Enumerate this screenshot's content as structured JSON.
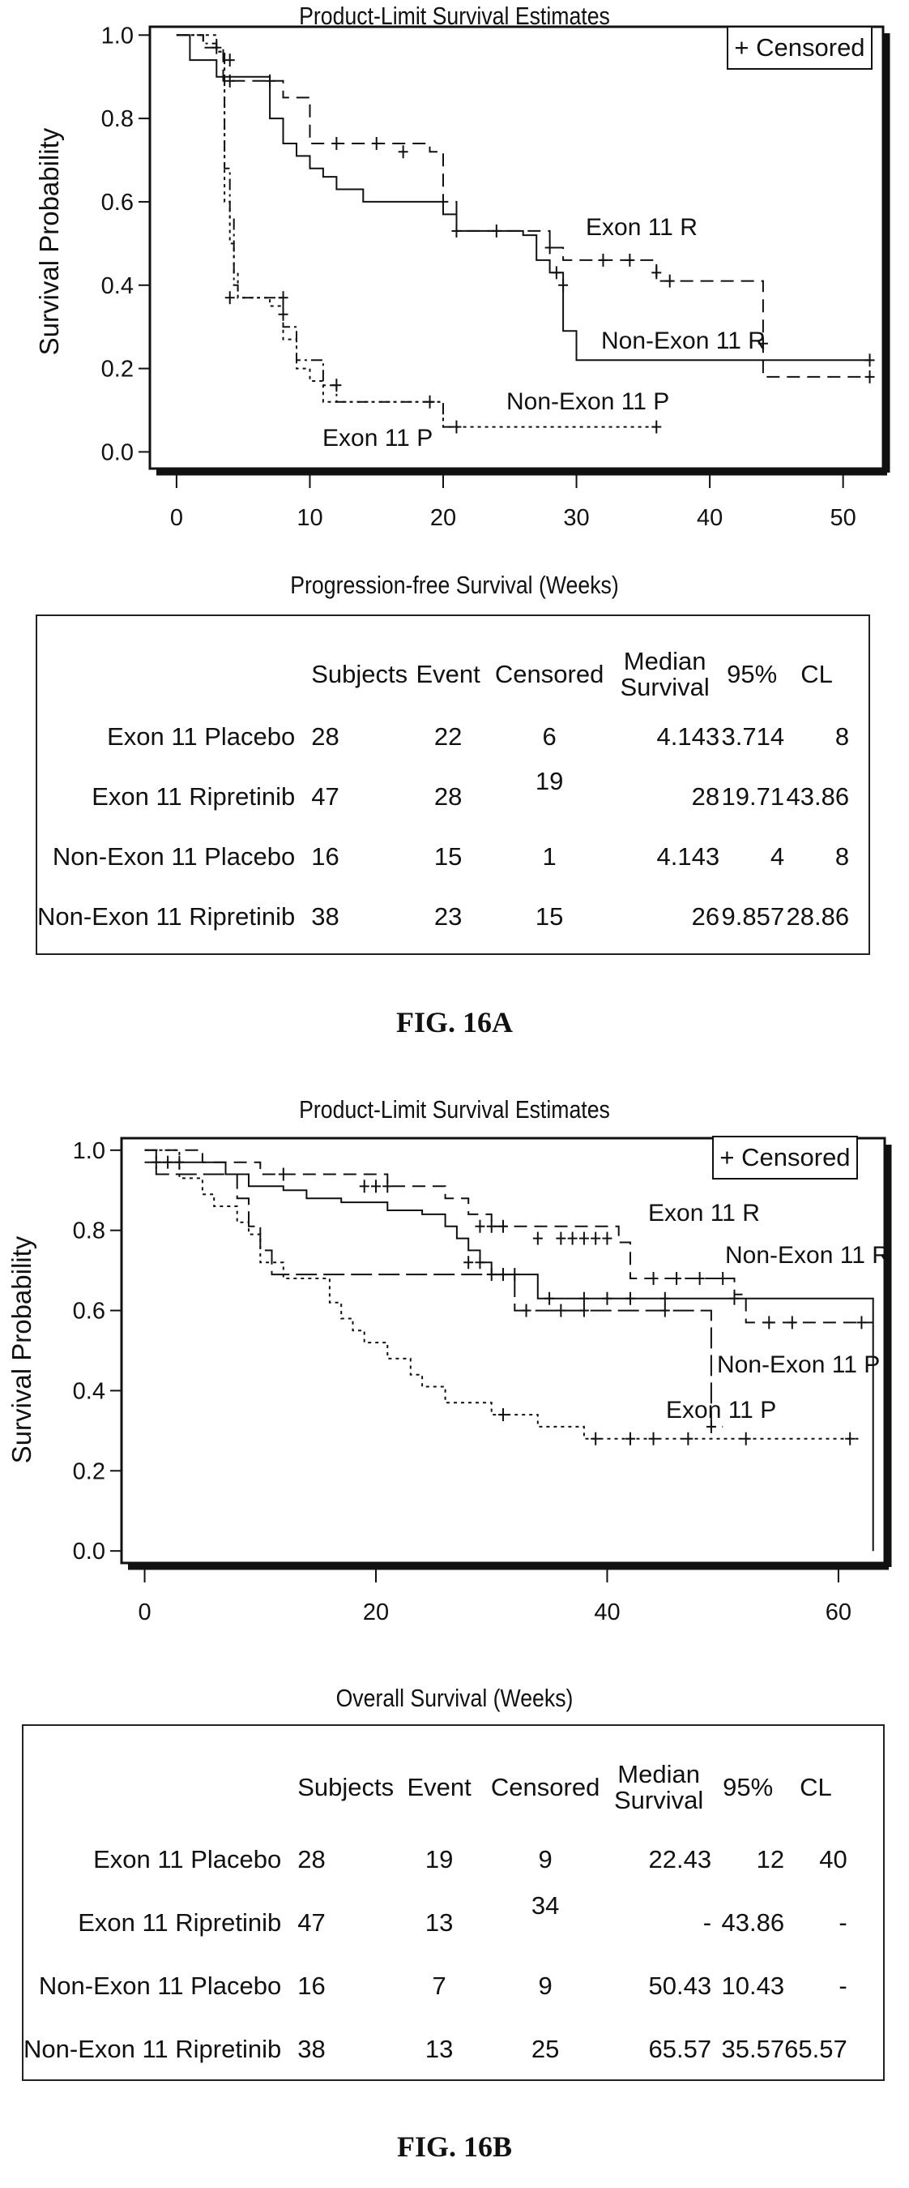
{
  "figures": [
    {
      "chart_title": "Product-Limit Survival Estimates",
      "legend": "+ Censored",
      "ylabel": "Survival Probability",
      "table_title": "Progression-free Survival (Weeks)",
      "table_headers": [
        "Subjects",
        "Event",
        "Censored",
        "Median Survival",
        "95%",
        "CL"
      ],
      "table_rows": [
        {
          "name": "Exon 11 Placebo",
          "cells": [
            "28",
            "22",
            "6",
            "4.143",
            "3.714",
            "8"
          ]
        },
        {
          "name": "Exon 11 Ripretinib",
          "cells": [
            "47",
            "28",
            "19",
            "28",
            "19.71",
            "43.86"
          ]
        },
        {
          "name": "Non-Exon 11 Placebo",
          "cells": [
            "16",
            "15",
            "1",
            "4.143",
            "4",
            "8"
          ]
        },
        {
          "name": "Non-Exon 11 Ripretinib",
          "cells": [
            "38",
            "23",
            "15",
            "26",
            "9.857",
            "28.86"
          ]
        }
      ],
      "figure_label": "FIG. 16A"
    },
    {
      "chart_title": "Product-Limit Survival Estimates",
      "legend": "+ Censored",
      "ylabel": "Survival Probability",
      "table_title": "Overall Survival (Weeks)",
      "table_headers": [
        "Subjects",
        "Event",
        "Censored",
        "Median Survival",
        "95%",
        "CL"
      ],
      "table_rows": [
        {
          "name": "Exon 11 Placebo",
          "cells": [
            "28",
            "19",
            "9",
            "22.43",
            "12",
            "40"
          ]
        },
        {
          "name": "Exon 11 Ripretinib",
          "cells": [
            "47",
            "13",
            "34",
            "-",
            "43.86",
            "-"
          ]
        },
        {
          "name": "Non-Exon 11 Placebo",
          "cells": [
            "16",
            "7",
            "9",
            "50.43",
            "10.43",
            "-"
          ]
        },
        {
          "name": "Non-Exon 11 Ripretinib",
          "cells": [
            "38",
            "13",
            "25",
            "65.57",
            "35.57",
            "65.57"
          ]
        }
      ],
      "figure_label": "FIG. 16B"
    }
  ],
  "chart_data": [
    {
      "type": "line",
      "title": "Product-Limit Survival Estimates",
      "xlabel": "",
      "ylabel": "Survival Probability",
      "xlim": [
        -2,
        53
      ],
      "ylim": [
        -0.04,
        1.02
      ],
      "xticks": [
        0,
        10,
        20,
        30,
        40,
        50
      ],
      "yticks": [
        0.0,
        0.2,
        0.4,
        0.6,
        0.8,
        1.0
      ],
      "legend": "+ Censored",
      "legend_position": "top-right",
      "series": [
        {
          "name": "Exon 11 R",
          "style": "dashed",
          "steps": [
            [
              0,
              1.0
            ],
            [
              2,
              0.97
            ],
            [
              3.5,
              0.89
            ],
            [
              8,
              0.85
            ],
            [
              10,
              0.74
            ],
            [
              19,
              0.72
            ],
            [
              20,
              0.6
            ],
            [
              21,
              0.53
            ],
            [
              28,
              0.49
            ],
            [
              29,
              0.46
            ],
            [
              36,
              0.41
            ],
            [
              44,
              0.18
            ],
            [
              52,
              0.18
            ]
          ],
          "censored": [
            [
              4,
              0.89
            ],
            [
              7,
              0.89
            ],
            [
              12,
              0.74
            ],
            [
              15,
              0.74
            ],
            [
              17,
              0.72
            ],
            [
              24,
              0.53
            ],
            [
              32,
              0.46
            ],
            [
              34,
              0.46
            ],
            [
              36,
              0.43
            ],
            [
              37,
              0.41
            ],
            [
              44,
              0.26
            ],
            [
              52,
              0.18
            ]
          ]
        },
        {
          "name": "Non-Exon 11 R",
          "style": "solid",
          "steps": [
            [
              0,
              1.0
            ],
            [
              1,
              0.94
            ],
            [
              3,
              0.9
            ],
            [
              7,
              0.8
            ],
            [
              8,
              0.74
            ],
            [
              9,
              0.71
            ],
            [
              10,
              0.68
            ],
            [
              11,
              0.66
            ],
            [
              12,
              0.63
            ],
            [
              14,
              0.6
            ],
            [
              20,
              0.57
            ],
            [
              21,
              0.53
            ],
            [
              26,
              0.52
            ],
            [
              27,
              0.46
            ],
            [
              28,
              0.43
            ],
            [
              29,
              0.29
            ],
            [
              30,
              0.22
            ],
            [
              52,
              0.22
            ]
          ],
          "censored": [
            [
              3,
              0.97
            ],
            [
              4,
              0.94
            ],
            [
              21,
              0.53
            ],
            [
              28,
              0.49
            ],
            [
              28.5,
              0.43
            ],
            [
              29,
              0.4
            ],
            [
              52,
              0.22
            ]
          ]
        },
        {
          "name": "Exon 11 P",
          "style": "dash-dot",
          "steps": [
            [
              0,
              1.0
            ],
            [
              2,
              0.98
            ],
            [
              3,
              0.96
            ],
            [
              3.6,
              0.68
            ],
            [
              4,
              0.56
            ],
            [
              4.3,
              0.4
            ],
            [
              4.6,
              0.37
            ],
            [
              8,
              0.3
            ],
            [
              9,
              0.22
            ],
            [
              11,
              0.16
            ],
            [
              12,
              0.12
            ],
            [
              20,
              0.06
            ],
            [
              21,
              0.06
            ]
          ],
          "censored": [
            [
              4,
              0.37
            ],
            [
              8,
              0.33
            ],
            [
              12,
              0.16
            ],
            [
              21,
              0.06
            ]
          ]
        },
        {
          "name": "Non-Exon 11 P",
          "style": "dotted",
          "steps": [
            [
              0,
              1.0
            ],
            [
              3,
              0.96
            ],
            [
              3.6,
              0.6
            ],
            [
              4,
              0.5
            ],
            [
              4.3,
              0.43
            ],
            [
              4.6,
              0.37
            ],
            [
              7,
              0.35
            ],
            [
              8,
              0.27
            ],
            [
              9,
              0.2
            ],
            [
              10,
              0.17
            ],
            [
              11,
              0.12
            ],
            [
              19,
              0.12
            ],
            [
              20,
              0.06
            ],
            [
              36,
              0.06
            ]
          ],
          "censored": [
            [
              8,
              0.37
            ],
            [
              19,
              0.12
            ],
            [
              36,
              0.06
            ]
          ]
        }
      ]
    },
    {
      "type": "line",
      "title": "Product-Limit Survival Estimates",
      "xlabel": "",
      "ylabel": "Survival Probability",
      "xlim": [
        -2,
        64
      ],
      "ylim": [
        -0.03,
        1.03
      ],
      "xticks": [
        0,
        20,
        40,
        60
      ],
      "yticks": [
        0.0,
        0.2,
        0.4,
        0.6,
        0.8,
        1.0
      ],
      "legend": "+ Censored",
      "legend_position": "top-right",
      "series": [
        {
          "name": "Exon 11 R",
          "style": "dashed",
          "steps": [
            [
              0,
              1.0
            ],
            [
              5,
              0.97
            ],
            [
              10,
              0.94
            ],
            [
              21,
              0.91
            ],
            [
              26,
              0.88
            ],
            [
              28,
              0.84
            ],
            [
              30,
              0.81
            ],
            [
              41,
              0.77
            ],
            [
              42,
              0.68
            ],
            [
              51,
              0.64
            ],
            [
              52,
              0.57
            ],
            [
              63,
              0.57
            ]
          ],
          "censored": [
            [
              3,
              0.97
            ],
            [
              12,
              0.94
            ],
            [
              19,
              0.91
            ],
            [
              20,
              0.91
            ],
            [
              21,
              0.91
            ],
            [
              29,
              0.81
            ],
            [
              30,
              0.81
            ],
            [
              31,
              0.81
            ],
            [
              34,
              0.78
            ],
            [
              36,
              0.78
            ],
            [
              37,
              0.78
            ],
            [
              38,
              0.78
            ],
            [
              39,
              0.78
            ],
            [
              40,
              0.78
            ],
            [
              44,
              0.68
            ],
            [
              46,
              0.68
            ],
            [
              48,
              0.68
            ],
            [
              50,
              0.68
            ],
            [
              54,
              0.57
            ],
            [
              56,
              0.57
            ],
            [
              62,
              0.57
            ]
          ]
        },
        {
          "name": "Non-Exon 11 R",
          "style": "solid",
          "steps": [
            [
              0,
              0.97
            ],
            [
              5,
              0.97
            ],
            [
              7,
              0.94
            ],
            [
              9,
              0.91
            ],
            [
              12,
              0.9
            ],
            [
              14,
              0.88
            ],
            [
              17,
              0.87
            ],
            [
              21,
              0.85
            ],
            [
              24,
              0.84
            ],
            [
              26,
              0.81
            ],
            [
              27,
              0.78
            ],
            [
              28,
              0.75
            ],
            [
              29,
              0.72
            ],
            [
              30,
              0.69
            ],
            [
              34,
              0.63
            ],
            [
              63,
              0.63
            ],
            [
              63,
              0.0
            ]
          ],
          "censored": [
            [
              1,
              0.97
            ],
            [
              28,
              0.72
            ],
            [
              29,
              0.72
            ],
            [
              30,
              0.69
            ],
            [
              31,
              0.69
            ],
            [
              32,
              0.69
            ],
            [
              35,
              0.63
            ],
            [
              38,
              0.63
            ],
            [
              40,
              0.63
            ],
            [
              42,
              0.63
            ],
            [
              45,
              0.63
            ],
            [
              51,
              0.63
            ]
          ]
        },
        {
          "name": "Non-Exon 11 P",
          "style": "dash-long",
          "steps": [
            [
              0,
              1.0
            ],
            [
              1,
              0.94
            ],
            [
              7,
              0.94
            ],
            [
              8,
              0.88
            ],
            [
              9,
              0.81
            ],
            [
              10,
              0.75
            ],
            [
              11,
              0.69
            ],
            [
              31,
              0.69
            ],
            [
              32,
              0.6
            ],
            [
              48,
              0.6
            ],
            [
              49,
              0.31
            ],
            [
              50,
              0.31
            ]
          ],
          "censored": [
            [
              33,
              0.6
            ],
            [
              36,
              0.6
            ],
            [
              38,
              0.6
            ],
            [
              45,
              0.6
            ],
            [
              49,
              0.31
            ]
          ]
        },
        {
          "name": "Exon 11 P",
          "style": "dotted",
          "steps": [
            [
              0,
              1.0
            ],
            [
              3,
              0.93
            ],
            [
              5,
              0.89
            ],
            [
              6,
              0.86
            ],
            [
              8,
              0.82
            ],
            [
              9,
              0.79
            ],
            [
              10,
              0.72
            ],
            [
              12,
              0.68
            ],
            [
              16,
              0.62
            ],
            [
              17,
              0.58
            ],
            [
              18,
              0.55
            ],
            [
              19,
              0.52
            ],
            [
              21,
              0.48
            ],
            [
              23,
              0.44
            ],
            [
              24,
              0.41
            ],
            [
              26,
              0.37
            ],
            [
              30,
              0.34
            ],
            [
              34,
              0.31
            ],
            [
              38,
              0.28
            ],
            [
              62,
              0.28
            ]
          ],
          "censored": [
            [
              2,
              0.97
            ],
            [
              31,
              0.34
            ],
            [
              39,
              0.28
            ],
            [
              42,
              0.28
            ],
            [
              44,
              0.28
            ],
            [
              47,
              0.28
            ],
            [
              52,
              0.28
            ],
            [
              61,
              0.28
            ]
          ]
        }
      ]
    }
  ]
}
